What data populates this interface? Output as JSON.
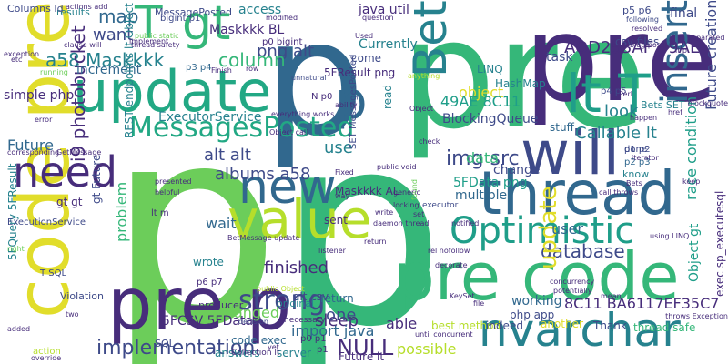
{
  "palette": {
    "background": "#ffffff",
    "yellow": "#e1dd2b",
    "lime": "#b6de2b",
    "green": "#6ccd5a",
    "emerald": "#35b779",
    "teal": "#1f9e89",
    "seafoam": "#22a884",
    "cyan": "#26828e",
    "steel": "#31688e",
    "blue": "#3e4a89",
    "indigo": "#472d7b",
    "purple": "#440154"
  },
  "words": [
    {
      "id": "w001",
      "text": "p",
      "color": "#6ccd5a"
    },
    {
      "id": "w002",
      "text": "p",
      "color": "#35b779"
    },
    {
      "id": "w003",
      "text": "pre",
      "color": "#35b779"
    },
    {
      "id": "w004",
      "text": "pre",
      "color": "#472d7b"
    },
    {
      "id": "w005",
      "text": "p",
      "color": "#31688e"
    },
    {
      "id": "w006",
      "text": "code pre",
      "color": "#e1dd2b"
    },
    {
      "id": "w007",
      "text": "update",
      "color": "#22a884"
    },
    {
      "id": "w008",
      "text": "pre code",
      "color": "#35b779"
    },
    {
      "id": "w009",
      "text": "pre p",
      "color": "#472d7b"
    },
    {
      "id": "w010",
      "text": "will",
      "color": "#3e4a89"
    },
    {
      "id": "w011",
      "text": "thread",
      "color": "#31688e"
    },
    {
      "id": "w012",
      "text": "nvarchar",
      "color": "#26828e"
    },
    {
      "id": "w013",
      "text": "value",
      "color": "#b6de2b"
    },
    {
      "id": "w014",
      "text": "new",
      "color": "#31688e"
    },
    {
      "id": "w015",
      "text": "need",
      "color": "#472d7b"
    },
    {
      "id": "w016",
      "text": "gt",
      "color": "#35b779"
    },
    {
      "id": "w017",
      "text": "lt T",
      "color": "#1f9e89"
    },
    {
      "id": "w018",
      "text": "p",
      "color": "#31688e"
    },
    {
      "id": "w019",
      "text": "Bet",
      "color": "#26828e"
    },
    {
      "id": "w020",
      "text": "insert",
      "color": "#31688e"
    },
    {
      "id": "w021",
      "text": "T",
      "color": "#35b779"
    },
    {
      "id": "w022",
      "text": "Optimistic",
      "color": "#1f9e89"
    },
    {
      "id": "w023",
      "text": "MessagesPosted",
      "color": "#22a884"
    },
    {
      "id": "w024",
      "text": "strong",
      "color": "#3e4a89"
    },
    {
      "id": "w025",
      "text": "NULL",
      "color": "#472d7b"
    },
    {
      "id": "w026",
      "text": "implementation",
      "color": "#3e4a89"
    },
    {
      "id": "w027",
      "text": "img src",
      "color": "#3e4a89"
    },
    {
      "id": "w028",
      "text": "alt alt",
      "color": "#3e4a89"
    },
    {
      "id": "w029",
      "text": "database",
      "color": "#3e4a89"
    },
    {
      "id": "w030",
      "text": "update",
      "color": "#e1dd2b"
    },
    {
      "id": "w031",
      "text": "map",
      "color": "#31688e"
    },
    {
      "id": "w032",
      "text": "want",
      "color": "#3e4a89"
    },
    {
      "id": "w033",
      "text": "png alt",
      "color": "#3e4a89"
    },
    {
      "id": "w034",
      "text": "column",
      "color": "#35b779"
    },
    {
      "id": "w035",
      "text": "a58 Maskkkk",
      "color": "#26828e"
    },
    {
      "id": "w036",
      "text": "finished",
      "color": "#472d7b"
    },
    {
      "id": "w037",
      "text": "wait",
      "color": "#31688e"
    },
    {
      "id": "w038",
      "text": "user",
      "color": "#31688e"
    },
    {
      "id": "w039",
      "text": "albums a58",
      "color": "#3e4a89"
    },
    {
      "id": "w040",
      "text": "sleep",
      "color": "#472d7b"
    },
    {
      "id": "w041",
      "text": "possible",
      "color": "#b6de2b"
    },
    {
      "id": "w042",
      "text": "data",
      "color": "#35b779"
    },
    {
      "id": "w043",
      "text": "i9 photobucket",
      "color": "#472d7b"
    },
    {
      "id": "w044",
      "text": "race condition",
      "color": "#1f9e89"
    },
    {
      "id": "w045",
      "text": "AOD253AF 49AE",
      "color": "#472d7b"
    },
    {
      "id": "w046",
      "text": "Callable lt",
      "color": "#26828e"
    },
    {
      "id": "w047",
      "text": "object",
      "color": "#e1dd2b"
    },
    {
      "id": "w048",
      "text": "Future",
      "color": "#31688e"
    },
    {
      "id": "w049",
      "text": "Future creation",
      "color": "#3e4a89"
    },
    {
      "id": "w050",
      "text": "look",
      "color": "#26828e"
    },
    {
      "id": "w051",
      "text": "change",
      "color": "#3e4a89"
    },
    {
      "id": "w052",
      "text": "changed",
      "color": "#6ccd5a"
    },
    {
      "id": "w053",
      "text": "one",
      "color": "#3e4a89"
    },
    {
      "id": "w054",
      "text": "able",
      "color": "#472d7b"
    },
    {
      "id": "w055",
      "text": "use",
      "color": "#26828e"
    },
    {
      "id": "w056",
      "text": "import java",
      "color": "#31688e"
    },
    {
      "id": "w057",
      "text": "ExecutorService",
      "color": "#26828e"
    },
    {
      "id": "w058",
      "text": "increment",
      "color": "#31688e"
    },
    {
      "id": "w059",
      "text": "problem",
      "color": "#35b779"
    },
    {
      "id": "w060",
      "text": "49AE 8C11",
      "color": "#1f9e89"
    },
    {
      "id": "w061",
      "text": "8C11 BA6117EF35C7",
      "color": "#472d7b"
    },
    {
      "id": "w062",
      "text": "Object gt",
      "color": "#1f9e89"
    },
    {
      "id": "w063",
      "text": "exec sp_executesql",
      "color": "#472d7b"
    },
    {
      "id": "w064",
      "text": "sent",
      "color": "#472d7b"
    },
    {
      "id": "w065",
      "text": "simple php",
      "color": "#472d7b"
    },
    {
      "id": "w066",
      "text": "task",
      "color": "#3e4a89"
    },
    {
      "id": "w067",
      "text": "Currently",
      "color": "#26828e"
    },
    {
      "id": "w068",
      "text": "access",
      "color": "#26828e"
    },
    {
      "id": "w069",
      "text": "java util",
      "color": "#472d7b"
    },
    {
      "id": "w070",
      "text": "Maskkkk BL",
      "color": "#472d7b"
    },
    {
      "id": "w071",
      "text": "5FResult png",
      "color": "#472d7b"
    },
    {
      "id": "w072",
      "text": "Maskkkk AL",
      "color": "#472d7b"
    },
    {
      "id": "w073",
      "text": "5FData png",
      "color": "#1f9e89"
    },
    {
      "id": "w074",
      "text": "5FCSV 5FData",
      "color": "#472d7b"
    },
    {
      "id": "w075",
      "text": "Future lt",
      "color": "#472d7b"
    },
    {
      "id": "w076",
      "text": "best method",
      "color": "#b6de2b"
    },
    {
      "id": "w077",
      "text": "thread safe",
      "color": "#35b779"
    },
    {
      "id": "w078",
      "text": "php app",
      "color": "#3e4a89"
    },
    {
      "id": "w079",
      "text": "working",
      "color": "#31688e"
    },
    {
      "id": "w080",
      "text": "Thank",
      "color": "#3e4a89"
    },
    {
      "id": "w081",
      "text": "indeed",
      "color": "#3e4a89"
    },
    {
      "id": "w082",
      "text": "another",
      "color": "#e1dd2b"
    },
    {
      "id": "w083",
      "text": "multiple",
      "color": "#31688e"
    },
    {
      "id": "w084",
      "text": "BlockingQueue",
      "color": "#3e4a89"
    },
    {
      "id": "w085",
      "text": "HashMap",
      "color": "#26828e"
    },
    {
      "id": "w086",
      "text": "LINQ",
      "color": "#26828e"
    },
    {
      "id": "w087",
      "text": "stuff",
      "color": "#31688e"
    },
    {
      "id": "w088",
      "text": "csv files",
      "color": "#3e4a89"
    },
    {
      "id": "w089",
      "text": "final",
      "color": "#3e4a89"
    },
    {
      "id": "w090",
      "text": "return",
      "color": "#31688e"
    },
    {
      "id": "w091",
      "text": "read",
      "color": "#26828e"
    },
    {
      "id": "w092",
      "text": "come",
      "color": "#3e4a89"
    },
    {
      "id": "w093",
      "text": "Bets SET",
      "color": "#26828e"
    },
    {
      "id": "w094",
      "text": "p4 p5",
      "color": "#3e4a89"
    },
    {
      "id": "w095",
      "text": "p1 p2",
      "color": "#3e4a89"
    },
    {
      "id": "w096",
      "text": "p2 p3",
      "color": "#31688e"
    },
    {
      "id": "w097",
      "text": "done",
      "color": "#3e4a89"
    },
    {
      "id": "w098",
      "text": "know",
      "color": "#26828e"
    },
    {
      "id": "w099",
      "text": "results",
      "color": "#26828e"
    },
    {
      "id": "w100",
      "text": "Columns Id",
      "color": "#3e4a89"
    },
    {
      "id": "w101",
      "text": "MessagePosted",
      "color": "#3e4a89"
    },
    {
      "id": "w102",
      "text": "bigint p1",
      "color": "#3e4a89"
    },
    {
      "id": "w103",
      "text": "p0 bigint",
      "color": "#472d7b"
    },
    {
      "id": "w104",
      "text": "p3 p4",
      "color": "#31688e"
    },
    {
      "id": "w105",
      "text": "p5 p6",
      "color": "#3e4a89"
    },
    {
      "id": "w106",
      "text": "gt gt",
      "color": "#472d7b"
    },
    {
      "id": "w107",
      "text": "lt m",
      "color": "#472d7b"
    },
    {
      "id": "w108",
      "text": "wrote",
      "color": "#26828e"
    },
    {
      "id": "w109",
      "text": "p6 p7",
      "color": "#472d7b"
    },
    {
      "id": "w110",
      "text": "gt Future",
      "color": "#3e4a89"
    },
    {
      "id": "w111",
      "text": "REST endpoints lt Object",
      "color": "#26828e"
    },
    {
      "id": "w112",
      "text": "5FQuery 5FResult",
      "color": "#26828e"
    },
    {
      "id": "w113",
      "text": "SQL",
      "color": "#3e4a89"
    },
    {
      "id": "w114",
      "text": "T SQL",
      "color": "#3e4a89"
    },
    {
      "id": "w115",
      "text": "code exec",
      "color": "#31688e"
    },
    {
      "id": "w116",
      "text": "answers",
      "color": "#26828e"
    },
    {
      "id": "w117",
      "text": "server",
      "color": "#26828e"
    },
    {
      "id": "w118",
      "text": "alt csv",
      "color": "#3e4a89"
    },
    {
      "id": "w119",
      "text": "original",
      "color": "#26828e"
    },
    {
      "id": "w120",
      "text": "Violation",
      "color": "#3e4a89"
    },
    {
      "id": "w121",
      "text": "ExecutionService",
      "color": "#3e4a89"
    },
    {
      "id": "w122",
      "text": "producer",
      "color": "#472d7b"
    },
    {
      "id": "w123",
      "text": "action",
      "color": "#b6de2b"
    },
    {
      "id": "w124",
      "text": "p0 p1",
      "color": "#472d7b"
    },
    {
      "id": "w125",
      "text": "p1",
      "color": "#472d7b"
    },
    {
      "id": "w126",
      "text": "N p0",
      "color": "#472d7b"
    },
    {
      "id": "w127",
      "text": "SET MessagesPosted",
      "color": "#3e4a89"
    },
    {
      "id": "w128",
      "text": "Collection lt",
      "color": "#472d7b"
    },
    {
      "id": "w129",
      "text": "necessary",
      "color": "#472d7b"
    },
    {
      "id": "w130",
      "text": "executor",
      "color": "#3e4a89"
    },
    {
      "id": "w131",
      "text": "everything works",
      "color": "#472d7b"
    },
    {
      "id": "w132",
      "text": "decision",
      "color": "#3e4a89"
    },
    {
      "id": "w133",
      "text": "blockquote",
      "color": "#472d7b"
    },
    {
      "id": "w134",
      "text": "following",
      "color": "#3e4a89"
    },
    {
      "id": "w135",
      "text": "resolved",
      "color": "#472d7b"
    },
    {
      "id": "w136",
      "text": "blog post",
      "color": "#472d7b"
    },
    {
      "id": "w137",
      "text": "separated",
      "color": "#472d7b"
    },
    {
      "id": "w138",
      "text": "lt p",
      "color": "#472d7b"
    },
    {
      "id": "w139",
      "text": "exception",
      "color": "#472d7b"
    },
    {
      "id": "w140",
      "text": "clause will",
      "color": "#472d7b"
    },
    {
      "id": "w141",
      "text": "thread safety",
      "color": "#472d7b"
    },
    {
      "id": "w142",
      "text": "public static",
      "color": "#6ccd5a"
    },
    {
      "id": "w143",
      "text": "implement",
      "color": "#472d7b"
    },
    {
      "id": "w144",
      "text": "running",
      "color": "#6ccd5a"
    },
    {
      "id": "w145",
      "text": "question",
      "color": "#472d7b"
    },
    {
      "id": "w146",
      "text": "modified",
      "color": "#472d7b"
    },
    {
      "id": "w147",
      "text": "anything",
      "color": "#b6de2b"
    },
    {
      "id": "w148",
      "text": "unnatural",
      "color": "#3e4a89"
    },
    {
      "id": "w149",
      "text": "Perl",
      "color": "#472d7b"
    },
    {
      "id": "w150",
      "text": "href",
      "color": "#472d7b"
    },
    {
      "id": "w151",
      "text": "happen",
      "color": "#472d7b"
    },
    {
      "id": "w152",
      "text": "iterator",
      "color": "#472d7b"
    },
    {
      "id": "w153",
      "text": "call throws",
      "color": "#472d7b"
    },
    {
      "id": "w154",
      "text": "keep",
      "color": "#472d7b"
    },
    {
      "id": "w155",
      "text": "two",
      "color": "#472d7b"
    },
    {
      "id": "w156",
      "text": "etc",
      "color": "#472d7b"
    },
    {
      "id": "w157",
      "text": "error",
      "color": "#472d7b"
    },
    {
      "id": "w158",
      "text": "added",
      "color": "#472d7b"
    },
    {
      "id": "w159",
      "text": "corresponding",
      "color": "#472d7b"
    },
    {
      "id": "w160",
      "text": "GetMessage",
      "color": "#472d7b"
    },
    {
      "id": "w161",
      "text": "right",
      "color": "#6ccd5a"
    },
    {
      "id": "w162",
      "text": "helpful",
      "color": "#472d7b"
    },
    {
      "id": "w163",
      "text": "presented",
      "color": "#472d7b"
    },
    {
      "id": "w164",
      "text": "Object call",
      "color": "#472d7b"
    },
    {
      "id": "w165",
      "text": "BetMessage update",
      "color": "#472d7b"
    },
    {
      "id": "w166",
      "text": "listener",
      "color": "#472d7b"
    },
    {
      "id": "w167",
      "text": "public Object",
      "color": "#b6de2b"
    },
    {
      "id": "w168",
      "text": "way",
      "color": "#472d7b"
    },
    {
      "id": "w169",
      "text": "generic",
      "color": "#472d7b"
    },
    {
      "id": "w170",
      "text": "locking",
      "color": "#472d7b"
    },
    {
      "id": "w171",
      "text": "write",
      "color": "#472d7b"
    },
    {
      "id": "w172",
      "text": "daemon thread",
      "color": "#472d7b"
    },
    {
      "id": "w173",
      "text": "found",
      "color": "#6ccd5a"
    },
    {
      "id": "w174",
      "text": "notified",
      "color": "#472d7b"
    },
    {
      "id": "w175",
      "text": "using LINQ",
      "color": "#472d7b"
    },
    {
      "id": "w176",
      "text": "rel nofollow",
      "color": "#472d7b"
    },
    {
      "id": "w177",
      "text": "decorate",
      "color": "#472d7b"
    },
    {
      "id": "w178",
      "text": "concurrency",
      "color": "#472d7b"
    },
    {
      "id": "w179",
      "text": "potentially",
      "color": "#472d7b"
    },
    {
      "id": "w180",
      "text": "mean",
      "color": "#472d7b"
    },
    {
      "id": "w181",
      "text": "throws Exception",
      "color": "#472d7b"
    },
    {
      "id": "w182",
      "text": "KeySet",
      "color": "#472d7b"
    },
    {
      "id": "w183",
      "text": "file",
      "color": "#472d7b"
    },
    {
      "id": "w184",
      "text": "until concurrent",
      "color": "#472d7b"
    },
    {
      "id": "w185",
      "text": "yet",
      "color": "#472d7b"
    },
    {
      "id": "w186",
      "text": "override",
      "color": "#472d7b"
    },
    {
      "id": "w187",
      "text": "actions add",
      "color": "#472d7b"
    },
    {
      "id": "w188",
      "text": "Finish",
      "color": "#472d7b"
    },
    {
      "id": "w189",
      "text": "row",
      "color": "#472d7b"
    },
    {
      "id": "w190",
      "text": "ability",
      "color": "#472d7b"
    },
    {
      "id": "w191",
      "text": "Used",
      "color": "#472d7b"
    },
    {
      "id": "w192",
      "text": "Object",
      "color": "#472d7b"
    },
    {
      "id": "w193",
      "text": "return",
      "color": "#472d7b"
    },
    {
      "id": "w194",
      "text": "public void",
      "color": "#472d7b"
    },
    {
      "id": "w195",
      "text": "check",
      "color": "#472d7b"
    },
    {
      "id": "w196",
      "text": "set",
      "color": "#472d7b"
    },
    {
      "id": "w197",
      "text": "Fixed",
      "color": "#472d7b"
    },
    {
      "id": "w198",
      "text": "Bets",
      "color": "#472d7b"
    }
  ]
}
